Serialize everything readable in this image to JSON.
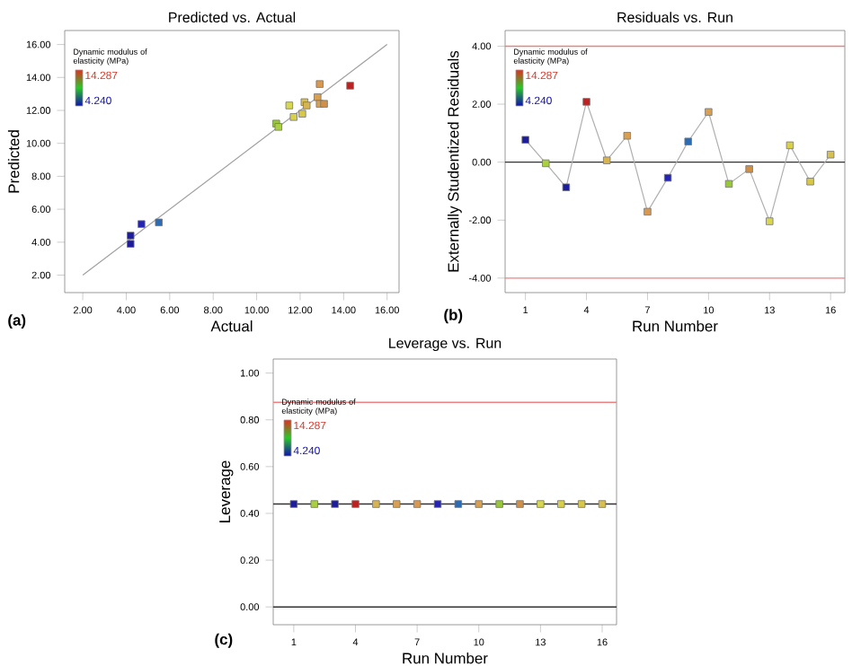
{
  "chart_data": [
    {
      "type": "scatter",
      "title": "Predicted vs. Actual",
      "xlabel": "Actual",
      "ylabel": "Predicted",
      "xlim": [
        1.17,
        16.55
      ],
      "ylim": [
        0.94,
        16.85
      ],
      "xticks": [
        {
          "value": 2,
          "label": "2.00"
        },
        {
          "value": 4,
          "label": "4.00"
        },
        {
          "value": 6,
          "label": "6.00"
        },
        {
          "value": 8,
          "label": "8.00"
        },
        {
          "value": 10,
          "label": "10.00"
        },
        {
          "value": 12,
          "label": "12.00"
        },
        {
          "value": 14,
          "label": "14.00"
        },
        {
          "value": 16,
          "label": "16.00"
        }
      ],
      "yticks": [
        {
          "value": 2,
          "label": "2.00"
        },
        {
          "value": 4,
          "label": "4.00"
        },
        {
          "value": 6,
          "label": "6.00"
        },
        {
          "value": 8,
          "label": "8.00"
        },
        {
          "value": 10,
          "label": "10.00"
        },
        {
          "value": 12,
          "label": "12.00"
        },
        {
          "value": 14,
          "label": "14.00"
        },
        {
          "value": 16,
          "label": "16.00"
        }
      ],
      "marker": "square",
      "annotations": [
        "(a)",
        "Dynamic modulus of elasticity (MPa)",
        "14.287",
        "4.240"
      ],
      "series": [
        {
          "type": "scatter",
          "x": [
            4.2,
            4.2,
            4.7,
            5.5,
            10.9,
            11.0,
            11.5,
            11.7,
            12.1,
            12.2,
            12.3,
            12.8,
            12.9,
            12.9,
            13.1,
            14.3
          ],
          "values": [
            3.9,
            4.4,
            5.1,
            5.2,
            11.2,
            11.0,
            12.3,
            11.6,
            11.8,
            12.5,
            12.3,
            12.8,
            13.6,
            12.4,
            12.4,
            13.5
          ],
          "colors": [
            "#1c1c9c",
            "#1c1c9c",
            "#2424b4",
            "#2c6cb4",
            "#98c838",
            "#a8d040",
            "#d8d850",
            "#d8d048",
            "#d8c848",
            "#d8c050",
            "#d8b450",
            "#d8a050",
            "#d89850",
            "#d8a050",
            "#d09048",
            "#c02020"
          ]
        },
        {
          "type": "line",
          "color": "#a0a0a0",
          "marker": "none",
          "x": [
            2,
            16
          ],
          "values": [
            2,
            16
          ]
        }
      ]
    },
    {
      "type": "line",
      "title": "Residuals vs. Run",
      "xlabel": "Run Number",
      "ylabel": "Externally Studentized Residuals",
      "xlim": [
        0,
        16.7
      ],
      "ylim": [
        -4.5,
        4.54
      ],
      "xticks": [
        1,
        4,
        7,
        10,
        13,
        16
      ],
      "yticks": [
        {
          "value": -4,
          "label": "-4.00"
        },
        {
          "value": -2,
          "label": "-2.00"
        },
        {
          "value": 0,
          "label": "0.00"
        },
        {
          "value": 2,
          "label": "2.00"
        },
        {
          "value": 4,
          "label": "4.00"
        }
      ],
      "marker": "square",
      "annotations": [
        "(b)",
        "Dynamic modulus of elasticity (MPa)",
        "14.287",
        "4.240"
      ],
      "x": [
        1,
        2,
        3,
        4,
        5,
        6,
        7,
        8,
        9,
        10,
        11,
        12,
        13,
        14,
        15,
        16
      ],
      "series": [
        {
          "color": "#b0b0b0",
          "values": [
            0.77,
            -0.04,
            -0.87,
            2.08,
            0.06,
            0.91,
            -1.71,
            -0.54,
            0.71,
            1.73,
            -0.75,
            -0.24,
            -2.04,
            0.58,
            -0.67,
            0.26
          ],
          "colors": [
            "#1c1c9c",
            "#a8d040",
            "#1c1c9c",
            "#c02020",
            "#d8b450",
            "#d8a050",
            "#d89850",
            "#2424b4",
            "#2c6cb4",
            "#d8a050",
            "#98c838",
            "#d09048",
            "#d8d850",
            "#d8d048",
            "#d8c848",
            "#d8c050"
          ]
        }
      ],
      "ref_lines": [
        {
          "axis": "y",
          "value": 4,
          "color": "#f08080"
        },
        {
          "axis": "y",
          "value": -4,
          "color": "#f08080"
        },
        {
          "axis": "y",
          "value": 0,
          "color": "#333333"
        }
      ]
    },
    {
      "type": "scatter",
      "title": "Leverage vs. Run",
      "xlabel": "Run Number",
      "ylabel": "Leverage",
      "xlim": [
        0,
        16.7
      ],
      "ylim": [
        -0.076,
        1.06
      ],
      "xticks": [
        1,
        4,
        7,
        10,
        13,
        16
      ],
      "yticks": [
        {
          "value": 0,
          "label": "0.00"
        },
        {
          "value": 0.2,
          "label": "0.20"
        },
        {
          "value": 0.4,
          "label": "0.40"
        },
        {
          "value": 0.6,
          "label": "0.60"
        },
        {
          "value": 0.8,
          "label": "0.80"
        },
        {
          "value": 1,
          "label": "1.00"
        }
      ],
      "marker": "square",
      "annotations": [
        "(c)",
        "Dynamic modulus of elasticity (MPa)",
        "14.287",
        "4.240"
      ],
      "x": [
        1,
        2,
        3,
        4,
        5,
        6,
        7,
        8,
        9,
        10,
        11,
        12,
        13,
        14,
        15,
        16
      ],
      "series": [
        {
          "values": [
            0.44,
            0.44,
            0.44,
            0.44,
            0.44,
            0.44,
            0.44,
            0.44,
            0.44,
            0.44,
            0.44,
            0.44,
            0.44,
            0.44,
            0.44,
            0.44
          ],
          "colors": [
            "#1c1c9c",
            "#a8d040",
            "#1c1c9c",
            "#c02020",
            "#d8b450",
            "#d8a050",
            "#d89850",
            "#2424b4",
            "#2c6cb4",
            "#d8a050",
            "#98c838",
            "#d09048",
            "#d8d850",
            "#d8d048",
            "#d8c848",
            "#d8c050"
          ]
        }
      ],
      "ref_lines": [
        {
          "axis": "y",
          "value": 0.875,
          "color": "#f08080"
        },
        {
          "axis": "y",
          "value": 0.44,
          "color": "#333333"
        },
        {
          "axis": "y",
          "value": 0,
          "color": "#333333"
        }
      ]
    }
  ]
}
